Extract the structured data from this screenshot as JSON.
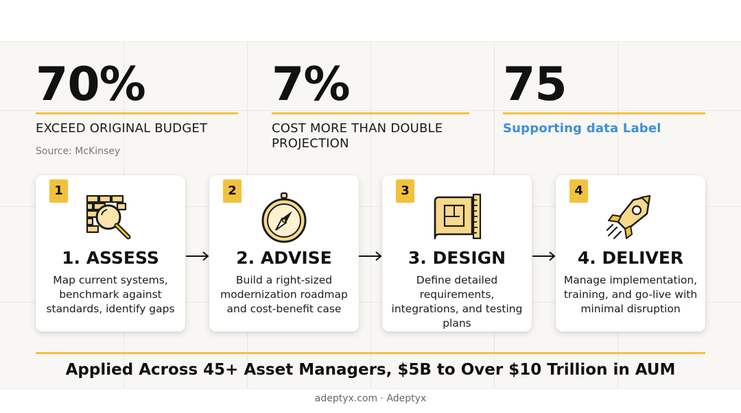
{
  "stats": [
    {
      "value": "70%",
      "label": "EXCEED ORIGINAL BUDGET",
      "source": "Source: McKinsey"
    },
    {
      "value": "7%",
      "label": "COST MORE THAN DOUBLE PROJECTION"
    },
    {
      "value": "75",
      "label": "Supporting data Label"
    }
  ],
  "steps": [
    {
      "number": "1",
      "title": "1. ASSESS",
      "description": "Map current systems, benchmark against standards, identify gaps",
      "icon": "magnifier-brick-wall-icon"
    },
    {
      "number": "2",
      "title": "2. ADVISE",
      "description": "Build a right-sized modernization roadmap and cost-benefit case",
      "icon": "compass-icon"
    },
    {
      "number": "3",
      "title": "3. DESIGN",
      "description": "Define detailed requirements, integrations, and testing plans",
      "icon": "blueprint-ruler-icon"
    },
    {
      "number": "4",
      "title": "4. DELIVER",
      "description": "Manage implementation, training, and go-live with minimal disruption",
      "icon": "rocket-icon"
    }
  ],
  "banner": "Applied Across 45+ Asset Managers, $5B to Over $10 Trillion in AUM",
  "footer": "adeptyx.com · Adeptyx",
  "colors": {
    "accent": "#f2c23d",
    "icon_fill": "#f7d98a",
    "label_blue": "#3d8fd6",
    "text": "#111111",
    "panel_bg": "#f8f7f4"
  }
}
